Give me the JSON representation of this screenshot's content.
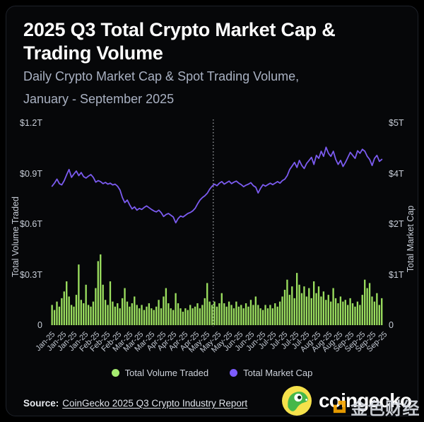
{
  "header": {
    "title_line1": "2025 Q3 Total Crypto Market Cap &",
    "title_line2": "Trading Volume",
    "subtitle_line1": "Daily Crypto Market Cap & Spot Trading Volume,",
    "subtitle_line2": "January - September 2025"
  },
  "chart_data": {
    "type": "bar+line combo",
    "title": "2025 Q3 Total Crypto Market Cap & Trading Volume",
    "grid": false,
    "legend_position": "bottom",
    "x_tick_labels": [
      "Jan-25",
      "Jan-25",
      "Jan-25",
      "Jan-25",
      "Feb-25",
      "Feb-25",
      "Feb-25",
      "Mar-25",
      "Mar-25",
      "Mar-25",
      "Apr-25",
      "Apr-25",
      "Apr-25",
      "Apr-25",
      "May-25",
      "May-25",
      "May-25",
      "Jun-25",
      "Jun-25",
      "Jun-25",
      "Jul-25",
      "Jul-25",
      "Jul-25",
      "Jul-25",
      "Aug-25",
      "Aug-25",
      "Aug-25",
      "Sep-25",
      "Sep-25",
      "Sep-25",
      "Sep-25"
    ],
    "left_axis": {
      "title": "Total Volume Traded",
      "tick_labels": [
        "$1.2T",
        "$0.9T",
        "$0.6T",
        "$0.3T",
        "0"
      ],
      "tick_values_trillions": [
        1.2,
        0.9,
        0.6,
        0.3,
        0
      ]
    },
    "right_axis": {
      "title": "Total Market Cap",
      "tick_labels": [
        "$5T",
        "$4T",
        "$2T",
        "$1T",
        "0"
      ],
      "tick_values_trillions": [
        5,
        4,
        2,
        1,
        0
      ]
    },
    "divider_fraction": 0.489,
    "series": [
      {
        "name": "Total Volume Traded",
        "type": "bar",
        "axis": "left",
        "color": "#9BDF5F",
        "values_trillions": [
          0.12,
          0.09,
          0.14,
          0.11,
          0.16,
          0.2,
          0.26,
          0.17,
          0.12,
          0.11,
          0.18,
          0.36,
          0.15,
          0.13,
          0.24,
          0.12,
          0.11,
          0.14,
          0.22,
          0.38,
          0.42,
          0.24,
          0.15,
          0.12,
          0.26,
          0.14,
          0.11,
          0.13,
          0.1,
          0.16,
          0.22,
          0.14,
          0.11,
          0.13,
          0.17,
          0.12,
          0.1,
          0.12,
          0.09,
          0.11,
          0.13,
          0.1,
          0.09,
          0.11,
          0.15,
          0.1,
          0.17,
          0.22,
          0.13,
          0.1,
          0.09,
          0.19,
          0.13,
          0.1,
          0.08,
          0.1,
          0.09,
          0.12,
          0.1,
          0.11,
          0.13,
          0.1,
          0.12,
          0.16,
          0.25,
          0.14,
          0.12,
          0.14,
          0.11,
          0.13,
          0.19,
          0.13,
          0.11,
          0.14,
          0.12,
          0.1,
          0.14,
          0.11,
          0.12,
          0.1,
          0.13,
          0.11,
          0.15,
          0.12,
          0.17,
          0.12,
          0.1,
          0.09,
          0.12,
          0.1,
          0.12,
          0.1,
          0.13,
          0.11,
          0.14,
          0.17,
          0.21,
          0.27,
          0.18,
          0.23,
          0.16,
          0.31,
          0.24,
          0.19,
          0.23,
          0.17,
          0.22,
          0.16,
          0.26,
          0.19,
          0.23,
          0.17,
          0.2,
          0.15,
          0.18,
          0.14,
          0.22,
          0.16,
          0.13,
          0.17,
          0.14,
          0.15,
          0.12,
          0.16,
          0.13,
          0.11,
          0.14,
          0.12,
          0.18,
          0.27,
          0.22,
          0.25,
          0.17,
          0.14,
          0.19,
          0.12,
          0.16
        ]
      },
      {
        "name": "Total Market Cap",
        "type": "line",
        "axis": "right",
        "color": "#7B5BF0",
        "values_trillions": [
          3.5,
          3.62,
          3.78,
          3.6,
          3.55,
          3.72,
          3.95,
          4.08,
          3.85,
          3.98,
          4.05,
          3.92,
          4.02,
          3.88,
          3.82,
          3.9,
          3.96,
          3.85,
          3.66,
          3.72,
          3.68,
          3.6,
          3.65,
          3.58,
          3.62,
          3.55,
          3.58,
          3.5,
          3.35,
          3.05,
          2.85,
          2.95,
          2.76,
          2.6,
          2.68,
          2.55,
          2.62,
          2.58,
          2.66,
          2.72,
          2.65,
          2.58,
          2.52,
          2.48,
          2.55,
          2.45,
          2.3,
          2.38,
          2.42,
          2.35,
          2.28,
          2.05,
          2.22,
          2.32,
          2.28,
          2.35,
          2.42,
          2.46,
          2.52,
          2.62,
          2.8,
          2.95,
          3.05,
          3.12,
          3.22,
          3.38,
          3.5,
          3.58,
          3.52,
          3.62,
          3.68,
          3.58,
          3.64,
          3.7,
          3.6,
          3.66,
          3.7,
          3.62,
          3.56,
          3.48,
          3.54,
          3.58,
          3.64,
          3.52,
          3.46,
          3.23,
          3.42,
          3.56,
          3.5,
          3.56,
          3.62,
          3.56,
          3.62,
          3.68,
          3.62,
          3.72,
          3.78,
          3.92,
          4.08,
          4.15,
          4.22,
          4.12,
          4.26,
          4.16,
          4.1,
          4.2,
          4.26,
          4.32,
          4.18,
          4.36,
          4.3,
          4.44,
          4.34,
          4.52,
          4.4,
          4.34,
          4.44,
          4.28,
          4.18,
          4.26,
          4.14,
          4.22,
          4.32,
          4.42,
          4.36,
          4.3,
          4.45,
          4.4,
          4.48,
          4.44,
          4.34,
          4.28,
          4.16,
          4.3,
          4.36,
          4.24,
          4.28
        ]
      }
    ]
  },
  "legend": {
    "items": [
      {
        "label": "Total Volume Traded",
        "color": "#A5EB70"
      },
      {
        "label": "Total Market Cap",
        "color": "#7D5CFF"
      }
    ]
  },
  "footer": {
    "source_label": "Source:",
    "source_link": "CoinGecko 2025 Q3 Crypto Industry Report"
  },
  "branding": {
    "wordmark": "coingecko",
    "watermark": "金色财经"
  },
  "colors": {
    "background": "#000000",
    "panel": "#060709",
    "title": "#ffffff",
    "subtitle": "#a9b1c2",
    "axis_text": "#c6ccd6",
    "bar_green": "#9BDF5F",
    "line_purple": "#7B5BF0",
    "divider": "#ced4d8",
    "gecko_yellow": "#F5E14B",
    "gecko_green": "#46B749",
    "watermark_orange": "#F7A600"
  }
}
